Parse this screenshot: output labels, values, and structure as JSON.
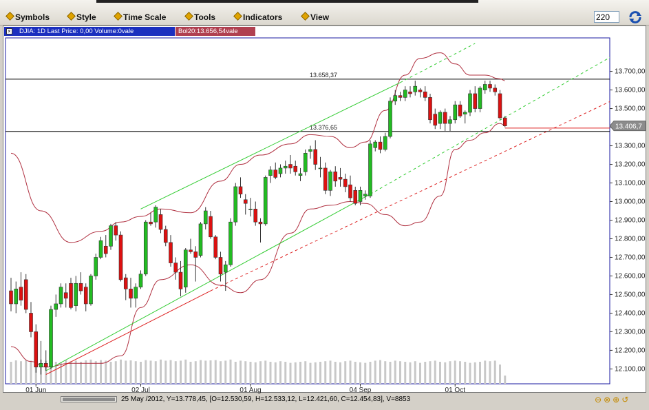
{
  "menu": {
    "items": [
      {
        "label": "Symbols"
      },
      {
        "label": "Style"
      },
      {
        "label": "Time Scale"
      },
      {
        "label": "Tools"
      },
      {
        "label": "Indicators"
      },
      {
        "label": "View"
      }
    ],
    "bars_count": "220"
  },
  "chart_header": {
    "title": "DJIA: 1D Last Price: 0,00 Volume:0vale",
    "indicator": "Bol20:13.656,54vale"
  },
  "status": {
    "readout": "25 May /2012, Y=13.778,45, [O=12.530,59, H=12.533,12, L=12.421,60, C=12.454,83], V=8853"
  },
  "colors": {
    "up": "#22bb22",
    "down": "#dd1111",
    "bollinger": "#b03040",
    "trend_green": "#33cc33",
    "trend_red": "#dd2222",
    "volume": "#c8c8c8"
  },
  "chart_data": {
    "type": "candlestick",
    "symbol": "DJIA",
    "timeframe": "1D",
    "ylim": [
      12020,
      13880
    ],
    "y_ticks": [
      "13.700,00",
      "13.600,00",
      "13.500,00",
      "13.400,00",
      "13.300,00",
      "13.200,00",
      "13.100,00",
      "13.000,00",
      "12.900,00",
      "12.800,00",
      "12.700,00",
      "12.600,00",
      "12.500,00",
      "12.400,00",
      "12.300,00",
      "12.200,00",
      "12.100,00"
    ],
    "y_tick_values": [
      13700,
      13600,
      13500,
      13400,
      13300,
      13200,
      13100,
      13000,
      12900,
      12800,
      12700,
      12600,
      12500,
      12400,
      12300,
      12200,
      12100
    ],
    "x_labels": [
      {
        "label": "01 Jun",
        "index": 5
      },
      {
        "label": "02 Jul",
        "index": 26
      },
      {
        "label": "01 Aug",
        "index": 48
      },
      {
        "label": "04 Sep",
        "index": 70
      },
      {
        "label": "01 Oct",
        "index": 89
      }
    ],
    "price_marker": "13.406,7",
    "horizontal_lines": [
      {
        "label": "13.658,37",
        "value": 13658
      },
      {
        "label": "13.376,65",
        "value": 13377
      }
    ],
    "candles": [
      {
        "o": 12520,
        "h": 12590,
        "l": 12410,
        "c": 12450
      },
      {
        "o": 12450,
        "h": 12570,
        "l": 12400,
        "c": 12530
      },
      {
        "o": 12540,
        "h": 12620,
        "l": 12440,
        "c": 12470
      },
      {
        "o": 12580,
        "h": 12610,
        "l": 12400,
        "c": 12420
      },
      {
        "o": 12400,
        "h": 12460,
        "l": 12270,
        "c": 12300
      },
      {
        "o": 12300,
        "h": 12340,
        "l": 12080,
        "c": 12110
      },
      {
        "o": 12110,
        "h": 12250,
        "l": 12070,
        "c": 12130
      },
      {
        "o": 12130,
        "h": 12200,
        "l": 12090,
        "c": 12110
      },
      {
        "o": 12110,
        "h": 12440,
        "l": 12100,
        "c": 12420
      },
      {
        "o": 12420,
        "h": 12500,
        "l": 12380,
        "c": 12450
      },
      {
        "o": 12450,
        "h": 12560,
        "l": 12430,
        "c": 12540
      },
      {
        "o": 12510,
        "h": 12560,
        "l": 12430,
        "c": 12480
      },
      {
        "o": 12560,
        "h": 12590,
        "l": 12420,
        "c": 12430
      },
      {
        "o": 12440,
        "h": 12600,
        "l": 12410,
        "c": 12560
      },
      {
        "o": 12560,
        "h": 12620,
        "l": 12500,
        "c": 12520
      },
      {
        "o": 12540,
        "h": 12560,
        "l": 12410,
        "c": 12450
      },
      {
        "o": 12450,
        "h": 12610,
        "l": 12440,
        "c": 12600
      },
      {
        "o": 12600,
        "h": 12720,
        "l": 12580,
        "c": 12700
      },
      {
        "o": 12700,
        "h": 12810,
        "l": 12690,
        "c": 12790
      },
      {
        "o": 12760,
        "h": 12820,
        "l": 12700,
        "c": 12720
      },
      {
        "o": 12760,
        "h": 12880,
        "l": 12740,
        "c": 12870
      },
      {
        "o": 12870,
        "h": 12890,
        "l": 12790,
        "c": 12820
      },
      {
        "o": 12820,
        "h": 12840,
        "l": 12570,
        "c": 12580
      },
      {
        "o": 12590,
        "h": 12610,
        "l": 12470,
        "c": 12530
      },
      {
        "o": 12530,
        "h": 12590,
        "l": 12430,
        "c": 12480
      },
      {
        "o": 12480,
        "h": 12560,
        "l": 12430,
        "c": 12540
      },
      {
        "o": 12540,
        "h": 12630,
        "l": 12530,
        "c": 12610
      },
      {
        "o": 12610,
        "h": 12900,
        "l": 12600,
        "c": 12890
      },
      {
        "o": 12890,
        "h": 12940,
        "l": 12870,
        "c": 12880
      },
      {
        "o": 12890,
        "h": 12980,
        "l": 12860,
        "c": 12970
      },
      {
        "o": 12930,
        "h": 12960,
        "l": 12830,
        "c": 12850
      },
      {
        "o": 12850,
        "h": 12870,
        "l": 12760,
        "c": 12780
      },
      {
        "o": 12780,
        "h": 12820,
        "l": 12650,
        "c": 12670
      },
      {
        "o": 12670,
        "h": 12700,
        "l": 12580,
        "c": 12620
      },
      {
        "o": 12620,
        "h": 12680,
        "l": 12490,
        "c": 12530
      },
      {
        "o": 12540,
        "h": 12750,
        "l": 12510,
        "c": 12740
      },
      {
        "o": 12740,
        "h": 12800,
        "l": 12720,
        "c": 12730
      },
      {
        "o": 12730,
        "h": 12760,
        "l": 12570,
        "c": 12700
      },
      {
        "o": 12710,
        "h": 12890,
        "l": 12700,
        "c": 12880
      },
      {
        "o": 12880,
        "h": 12970,
        "l": 12850,
        "c": 12950
      },
      {
        "o": 12920,
        "h": 12950,
        "l": 12800,
        "c": 12810
      },
      {
        "o": 12810,
        "h": 12820,
        "l": 12690,
        "c": 12700
      },
      {
        "o": 12700,
        "h": 12730,
        "l": 12570,
        "c": 12610
      },
      {
        "o": 12620,
        "h": 12680,
        "l": 12520,
        "c": 12660
      },
      {
        "o": 12660,
        "h": 12910,
        "l": 12650,
        "c": 12890
      },
      {
        "o": 12890,
        "h": 13100,
        "l": 12870,
        "c": 13080
      },
      {
        "o": 13080,
        "h": 13130,
        "l": 13020,
        "c": 13040
      },
      {
        "o": 13010,
        "h": 13040,
        "l": 12930,
        "c": 12990
      },
      {
        "o": 12960,
        "h": 13020,
        "l": 12920,
        "c": 12960
      },
      {
        "o": 12960,
        "h": 13000,
        "l": 12870,
        "c": 12890
      },
      {
        "o": 12890,
        "h": 12910,
        "l": 12780,
        "c": 12880
      },
      {
        "o": 12880,
        "h": 13140,
        "l": 12870,
        "c": 13130
      },
      {
        "o": 13140,
        "h": 13190,
        "l": 13100,
        "c": 13170
      },
      {
        "o": 13170,
        "h": 13210,
        "l": 13120,
        "c": 13130
      },
      {
        "o": 13150,
        "h": 13200,
        "l": 13130,
        "c": 13180
      },
      {
        "o": 13180,
        "h": 13220,
        "l": 13150,
        "c": 13190
      },
      {
        "o": 13200,
        "h": 13250,
        "l": 13150,
        "c": 13180
      },
      {
        "o": 13190,
        "h": 13220,
        "l": 13140,
        "c": 13160
      },
      {
        "o": 13140,
        "h": 13180,
        "l": 13110,
        "c": 13150
      },
      {
        "o": 13160,
        "h": 13280,
        "l": 13140,
        "c": 13260
      },
      {
        "o": 13270,
        "h": 13300,
        "l": 13230,
        "c": 13280
      },
      {
        "o": 13280,
        "h": 13330,
        "l": 13170,
        "c": 13200
      },
      {
        "o": 13180,
        "h": 13240,
        "l": 13130,
        "c": 13180
      },
      {
        "o": 13180,
        "h": 13210,
        "l": 13040,
        "c": 13060
      },
      {
        "o": 13060,
        "h": 13170,
        "l": 13030,
        "c": 13160
      },
      {
        "o": 13160,
        "h": 13190,
        "l": 13080,
        "c": 13110
      },
      {
        "o": 13130,
        "h": 13180,
        "l": 13080,
        "c": 13120
      },
      {
        "o": 13120,
        "h": 13150,
        "l": 13050,
        "c": 13080
      },
      {
        "o": 13090,
        "h": 13140,
        "l": 13000,
        "c": 13020
      },
      {
        "o": 13060,
        "h": 13080,
        "l": 12980,
        "c": 12990
      },
      {
        "o": 13000,
        "h": 13080,
        "l": 12980,
        "c": 13060
      },
      {
        "o": 13030,
        "h": 13060,
        "l": 13010,
        "c": 13040
      },
      {
        "o": 13030,
        "h": 13330,
        "l": 13020,
        "c": 13310
      },
      {
        "o": 13290,
        "h": 13330,
        "l": 13270,
        "c": 13320
      },
      {
        "o": 13320,
        "h": 13350,
        "l": 13260,
        "c": 13280
      },
      {
        "o": 13280,
        "h": 13370,
        "l": 13270,
        "c": 13350
      },
      {
        "o": 13350,
        "h": 13560,
        "l": 13340,
        "c": 13540
      },
      {
        "o": 13540,
        "h": 13600,
        "l": 13520,
        "c": 13570
      },
      {
        "o": 13570,
        "h": 13590,
        "l": 13540,
        "c": 13560
      },
      {
        "o": 13560,
        "h": 13620,
        "l": 13540,
        "c": 13600
      },
      {
        "o": 13590,
        "h": 13620,
        "l": 13560,
        "c": 13580
      },
      {
        "o": 13590,
        "h": 13650,
        "l": 13570,
        "c": 13620
      },
      {
        "o": 13600,
        "h": 13610,
        "l": 13560,
        "c": 13590
      },
      {
        "o": 13590,
        "h": 13620,
        "l": 13540,
        "c": 13560
      },
      {
        "o": 13560,
        "h": 13580,
        "l": 13420,
        "c": 13440
      },
      {
        "o": 13470,
        "h": 13500,
        "l": 13390,
        "c": 13410
      },
      {
        "o": 13420,
        "h": 13490,
        "l": 13390,
        "c": 13480
      },
      {
        "o": 13480,
        "h": 13500,
        "l": 13380,
        "c": 13420
      },
      {
        "o": 13420,
        "h": 13460,
        "l": 13380,
        "c": 13440
      },
      {
        "o": 13440,
        "h": 13540,
        "l": 13420,
        "c": 13520
      },
      {
        "o": 13520,
        "h": 13540,
        "l": 13450,
        "c": 13460
      },
      {
        "o": 13470,
        "h": 13490,
        "l": 13420,
        "c": 13480
      },
      {
        "o": 13480,
        "h": 13600,
        "l": 13460,
        "c": 13580
      },
      {
        "o": 13580,
        "h": 13620,
        "l": 13480,
        "c": 13500
      },
      {
        "o": 13500,
        "h": 13620,
        "l": 13480,
        "c": 13610
      },
      {
        "o": 13600,
        "h": 13650,
        "l": 13580,
        "c": 13630
      },
      {
        "o": 13630,
        "h": 13650,
        "l": 13590,
        "c": 13610
      },
      {
        "o": 13610,
        "h": 13630,
        "l": 13570,
        "c": 13590
      },
      {
        "o": 13580,
        "h": 13600,
        "l": 13440,
        "c": 13450
      },
      {
        "o": 13450,
        "h": 13460,
        "l": 13400,
        "c": 13407
      }
    ],
    "volume": [
      80,
      85,
      82,
      86,
      84,
      90,
      88,
      84,
      82,
      80,
      78,
      86,
      82,
      84,
      80,
      85,
      88,
      82,
      86,
      84,
      80,
      82,
      88,
      84,
      85,
      82,
      80,
      86,
      84,
      82,
      88,
      84,
      86,
      82,
      84,
      88,
      80,
      82,
      86,
      84,
      85,
      86,
      82,
      84,
      88,
      80,
      84,
      82,
      80,
      78,
      82,
      84,
      80,
      78,
      82,
      80,
      76,
      78,
      80,
      82,
      76,
      78,
      80,
      82,
      84,
      80,
      78,
      82,
      84,
      80,
      78,
      76,
      80,
      84,
      86,
      82,
      80,
      84,
      82,
      80,
      78,
      82,
      76,
      80,
      82,
      84,
      80,
      78,
      82,
      84,
      82,
      80,
      76,
      78,
      80,
      84,
      82,
      84,
      70,
      30
    ],
    "bollinger": {
      "upper": [
        [
          0,
          13260
        ],
        [
          6,
          12950
        ],
        [
          12,
          12780
        ],
        [
          18,
          12840
        ],
        [
          22,
          12890
        ],
        [
          26,
          12920
        ],
        [
          30,
          12960
        ],
        [
          36,
          12940
        ],
        [
          42,
          13110
        ],
        [
          46,
          13200
        ],
        [
          50,
          13250
        ],
        [
          56,
          13310
        ],
        [
          60,
          13360
        ],
        [
          64,
          13350
        ],
        [
          68,
          13290
        ],
        [
          71,
          13320
        ],
        [
          75,
          13490
        ],
        [
          79,
          13680
        ],
        [
          82,
          13770
        ],
        [
          86,
          13800
        ],
        [
          89,
          13740
        ],
        [
          92,
          13680
        ],
        [
          95,
          13680
        ],
        [
          98,
          13660
        ],
        [
          99,
          13650
        ]
      ],
      "lower": [
        [
          0,
          12220
        ],
        [
          4,
          12140
        ],
        [
          7,
          12110
        ],
        [
          12,
          12130
        ],
        [
          18,
          12130
        ],
        [
          22,
          12170
        ],
        [
          26,
          12430
        ],
        [
          30,
          12580
        ],
        [
          36,
          12660
        ],
        [
          42,
          12550
        ],
        [
          46,
          12510
        ],
        [
          50,
          12580
        ],
        [
          56,
          12830
        ],
        [
          60,
          12960
        ],
        [
          64,
          12980
        ],
        [
          68,
          13000
        ],
        [
          71,
          12990
        ],
        [
          75,
          12930
        ],
        [
          79,
          12870
        ],
        [
          82,
          12890
        ],
        [
          86,
          13030
        ],
        [
          89,
          13280
        ],
        [
          92,
          13330
        ],
        [
          95,
          13370
        ],
        [
          98,
          13420
        ],
        [
          99,
          13410
        ]
      ]
    },
    "trendlines": [
      {
        "color": "green",
        "style": "solid",
        "from": [
          26,
          12960
        ],
        "to": [
          78,
          13640
        ]
      },
      {
        "color": "green",
        "style": "dashed",
        "from": [
          78,
          13640
        ],
        "to": [
          93,
          13850
        ]
      },
      {
        "color": "green",
        "style": "solid",
        "from": [
          7,
          12090
        ],
        "to": [
          72,
          13040
        ]
      },
      {
        "color": "green",
        "style": "dashed",
        "from": [
          72,
          13040
        ],
        "to": [
          121,
          13790
        ]
      },
      {
        "color": "red",
        "style": "solid",
        "from": [
          7,
          12070
        ],
        "to": [
          40,
          12520
        ]
      },
      {
        "color": "red",
        "style": "dashed",
        "from": [
          40,
          12520
        ],
        "to": [
          121,
          13550
        ]
      },
      {
        "color": "red",
        "style": "solid",
        "from": [
          99,
          13395
        ],
        "to": [
          121,
          13395
        ]
      }
    ]
  }
}
